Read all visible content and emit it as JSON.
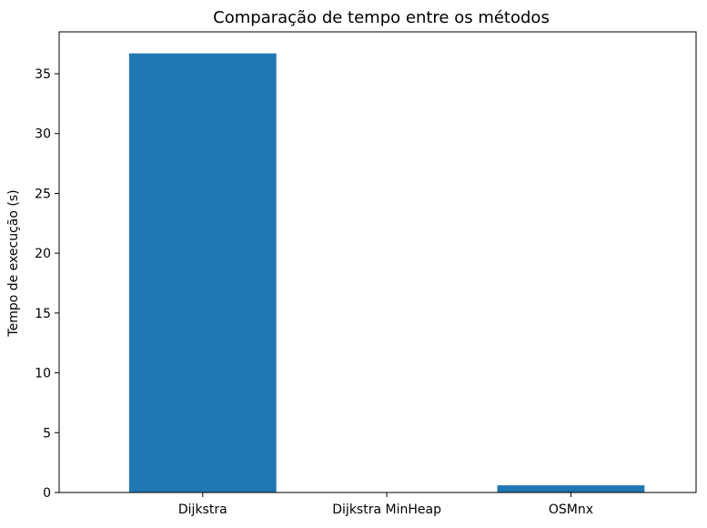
{
  "chart_data": {
    "type": "bar",
    "title": "Comparação de tempo entre os métodos",
    "xlabel": "",
    "ylabel": "Tempo de execução (s)",
    "categories": [
      "Dijkstra",
      "Dijkstra MinHeap",
      "OSMnx"
    ],
    "values": [
      36.7,
      0.02,
      0.6
    ],
    "ylim": [
      0,
      38.5
    ],
    "yticks": [
      0,
      5,
      10,
      15,
      20,
      25,
      30,
      35
    ],
    "grid": false,
    "bar_color": "#1f77b4"
  }
}
